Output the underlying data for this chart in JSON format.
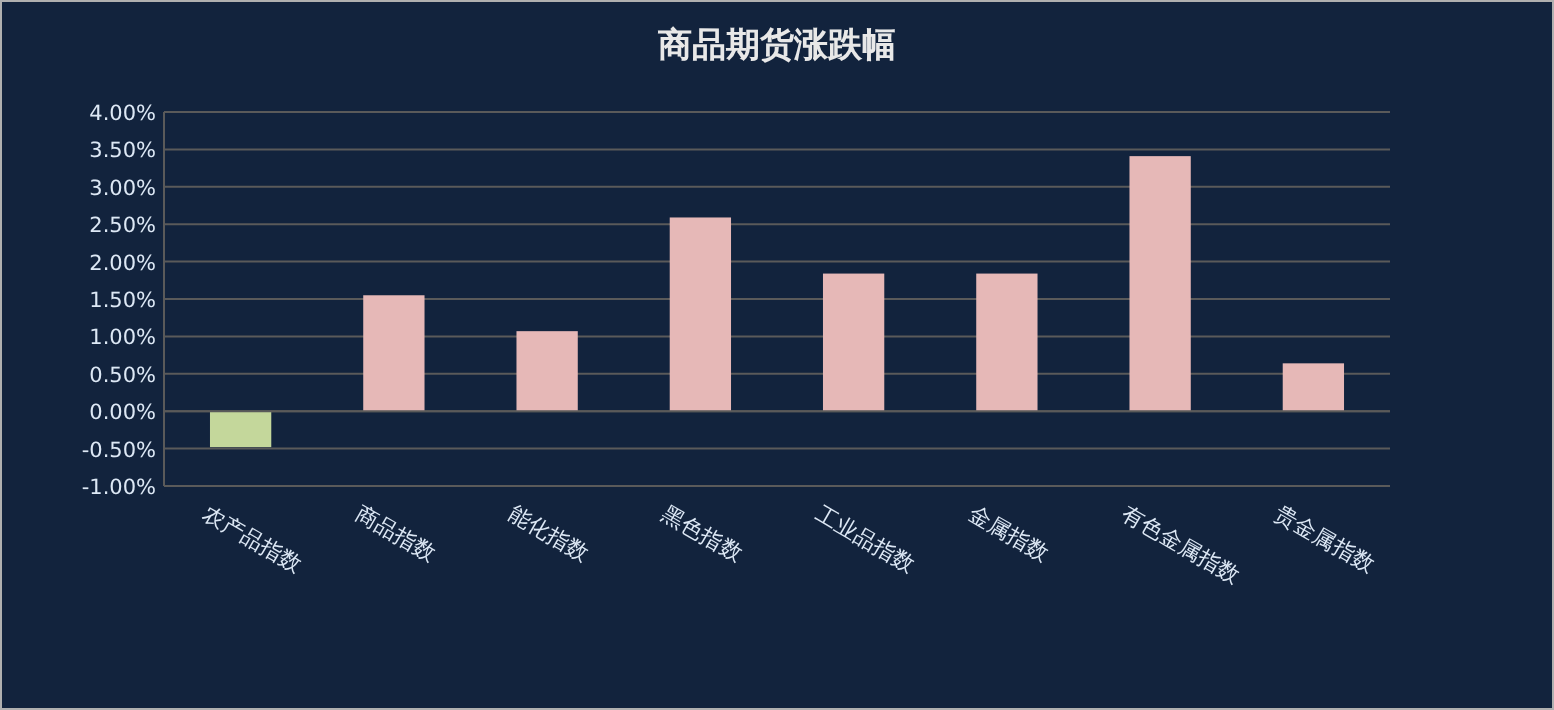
{
  "chart_data": {
    "type": "bar",
    "title": "商品期货涨跌幅",
    "categories": [
      "农产品指数",
      "商品指数",
      "能化指数",
      "黑色指数",
      "工业品指数",
      "金属指数",
      "有色金属指数",
      "贵金属指数"
    ],
    "values": [
      -0.48,
      1.55,
      1.07,
      2.59,
      1.84,
      1.84,
      3.41,
      0.64
    ],
    "colors": [
      "#c4d79b",
      "#e6b8b7",
      "#e6b8b7",
      "#e6b8b7",
      "#e6b8b7",
      "#e6b8b7",
      "#e6b8b7",
      "#e6b8b7"
    ],
    "ylim": [
      -1,
      4
    ],
    "yticks": [
      {
        "value": -1,
        "label": "-1.00%"
      },
      {
        "value": -0.5,
        "label": "-0.50%"
      },
      {
        "value": 0,
        "label": "0.00%"
      },
      {
        "value": 0.5,
        "label": "0.50%"
      },
      {
        "value": 1,
        "label": "1.00%"
      },
      {
        "value": 1.5,
        "label": "1.50%"
      },
      {
        "value": 2,
        "label": "2.00%"
      },
      {
        "value": 2.5,
        "label": "2.50%"
      },
      {
        "value": 3,
        "label": "3.00%"
      },
      {
        "value": 3.5,
        "label": "3.50%"
      },
      {
        "value": 4,
        "label": "4.00%"
      }
    ],
    "grid": "y"
  }
}
